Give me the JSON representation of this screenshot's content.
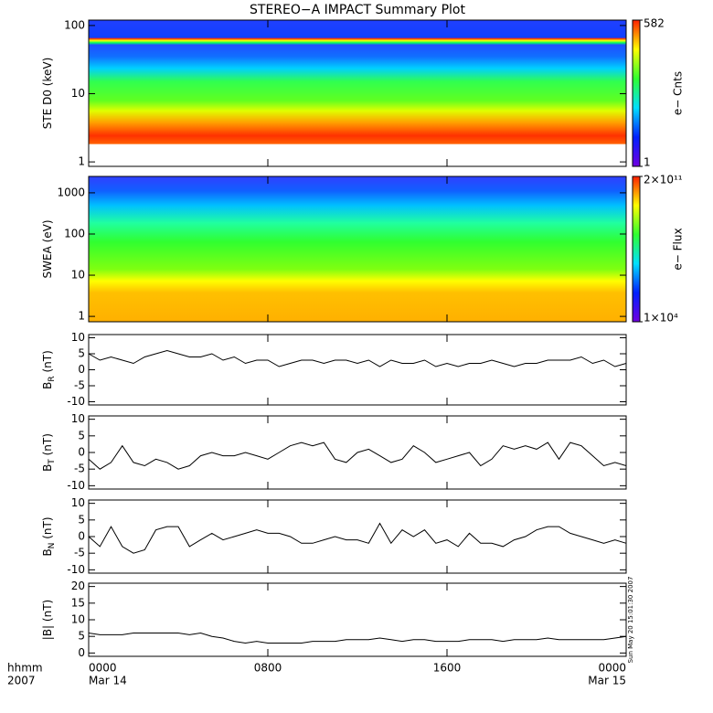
{
  "chart_data": [
    {
      "type": "spectrogram",
      "title": "STEREO−A IMPACT Summary Plot",
      "ylabel": "STE D0 (keV)",
      "log": true,
      "ylim": [
        0.86,
        120
      ],
      "yticks": [
        1,
        10,
        100
      ],
      "colorbar_label": "e− Cnts",
      "cbticks": [
        1,
        582
      ]
    },
    {
      "type": "spectrogram",
      "ylabel": "SWEA (eV)",
      "log": true,
      "ylim": [
        0.74,
        2500
      ],
      "yticks": [
        1,
        10,
        100,
        1000
      ],
      "colorbar_label": "e− Flux",
      "cbticks": [
        {
          "value": 10000,
          "label": "1×10⁴"
        },
        {
          "value": 200000000000,
          "label": "2×10¹¹"
        }
      ]
    },
    {
      "type": "line",
      "ylabel": "B",
      "ylabel_sub": "R",
      "ylabel_unit": " (nT)",
      "color": "#000000",
      "ylim": [
        -11,
        11
      ],
      "yticks": [
        -10,
        -5,
        0,
        5,
        10
      ],
      "x": [
        0,
        0.5,
        1,
        1.5,
        2,
        2.5,
        3,
        3.5,
        4,
        4.5,
        5,
        5.5,
        6,
        6.5,
        7,
        7.5,
        8,
        8.5,
        9,
        9.5,
        10,
        10.5,
        11,
        11.5,
        12,
        12.5,
        13,
        13.5,
        14,
        14.5,
        15,
        15.5,
        16,
        16.5,
        17,
        17.5,
        18,
        18.5,
        19,
        19.5,
        20,
        20.5,
        21,
        21.5,
        22,
        22.5,
        23,
        23.5,
        24
      ],
      "values": [
        5,
        3,
        4,
        3,
        2,
        4,
        5,
        6,
        5,
        4,
        4,
        5,
        3,
        4,
        2,
        3,
        3,
        1,
        2,
        3,
        3,
        2,
        3,
        3,
        2,
        3,
        1,
        3,
        2,
        2,
        3,
        1,
        2,
        1,
        2,
        2,
        3,
        2,
        1,
        2,
        2,
        3,
        3,
        3,
        4,
        2,
        3,
        1,
        2
      ]
    },
    {
      "type": "line",
      "ylabel": "B",
      "ylabel_sub": "T",
      "ylabel_unit": " (nT)",
      "color": "#000000",
      "ylim": [
        -11,
        11
      ],
      "yticks": [
        -10,
        -5,
        0,
        5,
        10
      ],
      "x": [
        0,
        0.5,
        1,
        1.5,
        2,
        2.5,
        3,
        3.5,
        4,
        4.5,
        5,
        5.5,
        6,
        6.5,
        7,
        7.5,
        8,
        8.5,
        9,
        9.5,
        10,
        10.5,
        11,
        11.5,
        12,
        12.5,
        13,
        13.5,
        14,
        14.5,
        15,
        15.5,
        16,
        16.5,
        17,
        17.5,
        18,
        18.5,
        19,
        19.5,
        20,
        20.5,
        21,
        21.5,
        22,
        22.5,
        23,
        23.5,
        24
      ],
      "values": [
        -2,
        -5,
        -3,
        2,
        -3,
        -4,
        -2,
        -3,
        -5,
        -4,
        -1,
        0,
        -1,
        -1,
        0,
        -1,
        -2,
        0,
        2,
        3,
        2,
        3,
        -2,
        -3,
        0,
        1,
        -1,
        -3,
        -2,
        2,
        0,
        -3,
        -2,
        -1,
        0,
        -4,
        -2,
        2,
        1,
        2,
        1,
        3,
        -2,
        3,
        2,
        -1,
        -4,
        -3,
        -4
      ]
    },
    {
      "type": "line",
      "ylabel": "B",
      "ylabel_sub": "N",
      "ylabel_unit": " (nT)",
      "color": "#000000",
      "ylim": [
        -11,
        11
      ],
      "yticks": [
        -10,
        -5,
        0,
        5,
        10
      ],
      "x": [
        0,
        0.5,
        1,
        1.5,
        2,
        2.5,
        3,
        3.5,
        4,
        4.5,
        5,
        5.5,
        6,
        6.5,
        7,
        7.5,
        8,
        8.5,
        9,
        9.5,
        10,
        10.5,
        11,
        11.5,
        12,
        12.5,
        13,
        13.5,
        14,
        14.5,
        15,
        15.5,
        16,
        16.5,
        17,
        17.5,
        18,
        18.5,
        19,
        19.5,
        20,
        20.5,
        21,
        21.5,
        22,
        22.5,
        23,
        23.5,
        24
      ],
      "values": [
        0,
        -3,
        3,
        -3,
        -5,
        -4,
        2,
        3,
        3,
        -3,
        -1,
        1,
        -1,
        0,
        1,
        2,
        1,
        1,
        0,
        -2,
        -2,
        -1,
        0,
        -1,
        -1,
        -2,
        4,
        -2,
        2,
        0,
        2,
        -2,
        -1,
        -3,
        1,
        -2,
        -2,
        -3,
        -1,
        0,
        2,
        3,
        3,
        1,
        0,
        -1,
        -2,
        -1,
        -2
      ]
    },
    {
      "type": "line",
      "ylabel": "|B| (nT)",
      "color": "#000000",
      "ylim": [
        -1,
        21
      ],
      "yticks": [
        0,
        5,
        10,
        15,
        20
      ],
      "x": [
        0,
        0.5,
        1,
        1.5,
        2,
        2.5,
        3,
        3.5,
        4,
        4.5,
        5,
        5.5,
        6,
        6.5,
        7,
        7.5,
        8,
        8.5,
        9,
        9.5,
        10,
        10.5,
        11,
        11.5,
        12,
        12.5,
        13,
        13.5,
        14,
        14.5,
        15,
        15.5,
        16,
        16.5,
        17,
        17.5,
        18,
        18.5,
        19,
        19.5,
        20,
        20.5,
        21,
        21.5,
        22,
        22.5,
        23,
        23.5,
        24
      ],
      "values": [
        6,
        5.5,
        5.5,
        5.5,
        6,
        6,
        6,
        6,
        6,
        5.5,
        6,
        5,
        4.5,
        3.5,
        3,
        3.5,
        3,
        3,
        3,
        3,
        3.5,
        3.5,
        3.5,
        4,
        4,
        4,
        4.5,
        4,
        3.5,
        4,
        4,
        3.5,
        3.5,
        3.5,
        4,
        4,
        4,
        3.5,
        4,
        4,
        4,
        4.5,
        4,
        4,
        4,
        4,
        4,
        4.5,
        5
      ],
      "xlim": [
        0,
        24
      ],
      "xticks": [
        {
          "value": 0,
          "label": "0000"
        },
        {
          "value": 8,
          "label": "0800"
        },
        {
          "value": 16,
          "label": "1600"
        },
        {
          "value": 24,
          "label": "0000"
        }
      ],
      "x_header": [
        "hhmm",
        "2007"
      ],
      "date_labels": [
        "Mar 14",
        "Mar 15"
      ],
      "timestamp": "Sun May 20 15:01:30 2007"
    }
  ]
}
